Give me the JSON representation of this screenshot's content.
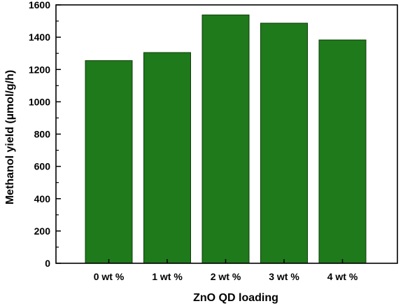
{
  "chart_data": {
    "type": "bar",
    "categories": [
      "0 wt %",
      "1 wt %",
      "2 wt %",
      "3 wt %",
      "4 wt %"
    ],
    "values": [
      1255,
      1305,
      1538,
      1487,
      1383
    ],
    "xlabel": "ZnO QD loading",
    "ylabel": "Methanol yield (µmol/g/h)",
    "ylim": [
      0,
      1600
    ],
    "yticks": [
      "0",
      "200",
      "400",
      "600",
      "800",
      "1000",
      "1200",
      "1400",
      "1600"
    ],
    "grid": false,
    "bar_color": "#1e7a1a",
    "bar_edge_color": "#0d3d0b"
  }
}
